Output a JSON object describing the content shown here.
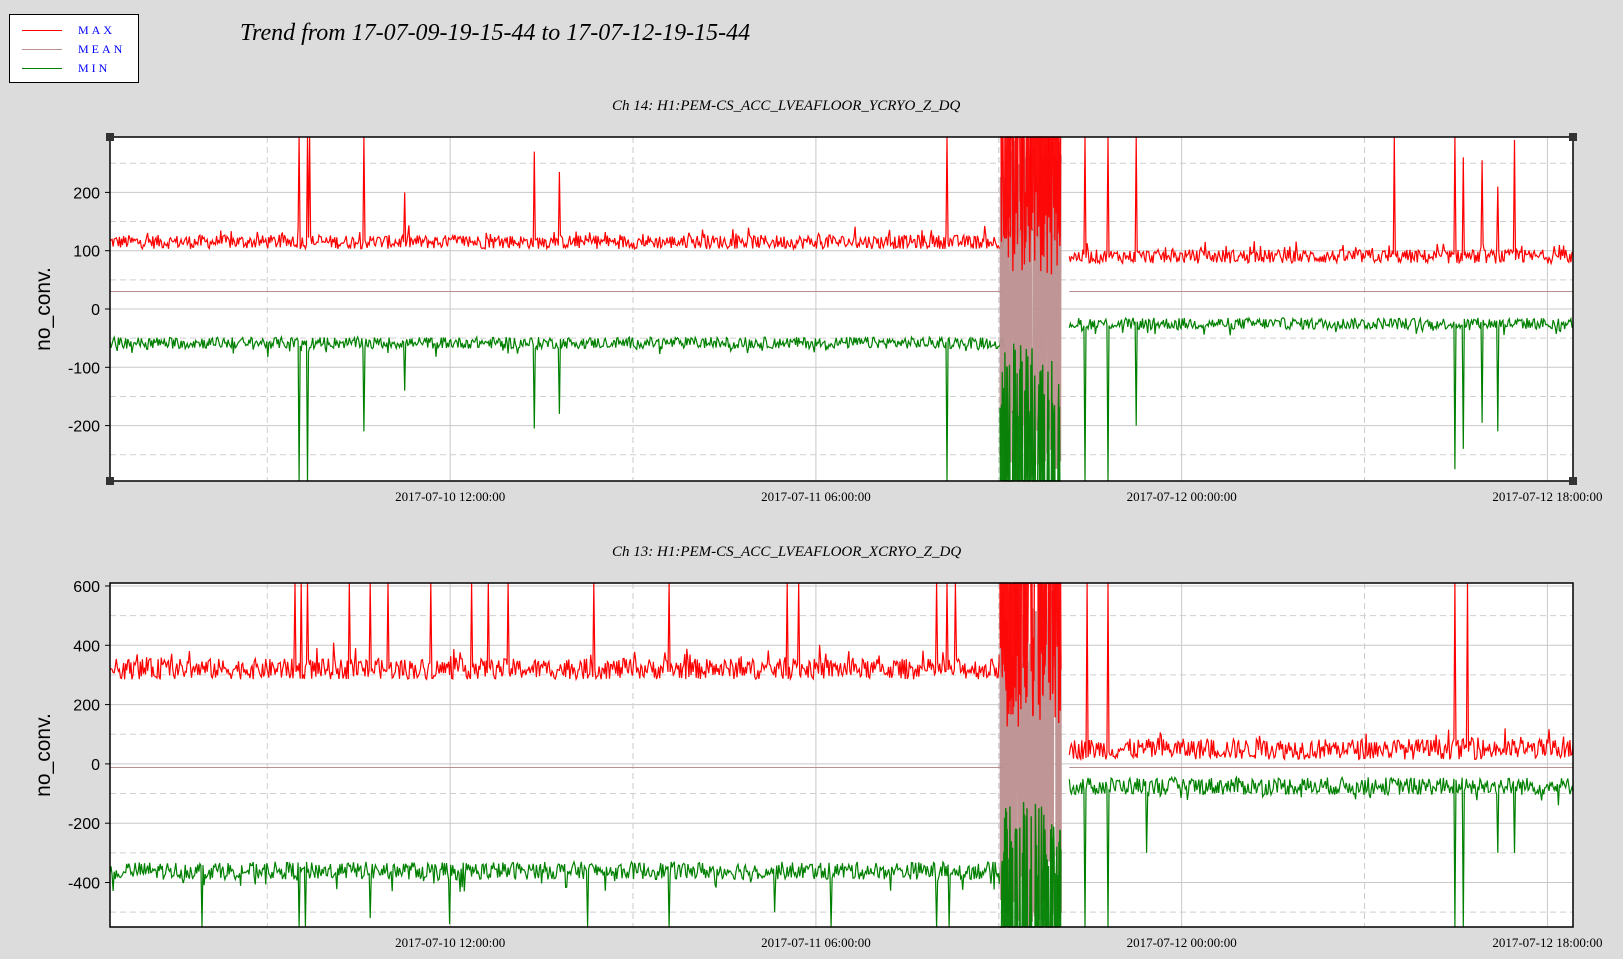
{
  "legend": {
    "items": [
      {
        "label": "MAX",
        "color": "#ff0000"
      },
      {
        "label": "MEAN",
        "color": "#bc8f8f"
      },
      {
        "label": "MIN",
        "color": "#008000"
      }
    ]
  },
  "title": "Trend from 17-07-09-19-15-44 to 17-07-12-19-15-44",
  "colors": {
    "max": "#ff0000",
    "mean": "#bc8f8f",
    "min": "#008000",
    "background": "#dcdcdc",
    "plot_bg": "#ffffff"
  },
  "chart_data": [
    {
      "type": "line",
      "title": "Ch 14: H1:PEM-CS_ACC_LVEAFLOOR_YCRYO_Z_DQ",
      "xlabel": "",
      "ylabel": "no_conv.",
      "xlim_hours": [
        0,
        72
      ],
      "x_ticks": [
        {
          "label": "2017-07-10 12:00:00",
          "hour": 16.74
        },
        {
          "label": "2017-07-11 06:00:00",
          "hour": 34.74
        },
        {
          "label": "2017-07-12 00:00:00",
          "hour": 52.74
        },
        {
          "label": "2017-07-12 18:00:00",
          "hour": 70.74
        }
      ],
      "ylim": [
        -295,
        295
      ],
      "y_ticks": [
        {
          "label": "200",
          "value": 200
        },
        {
          "label": "100",
          "value": 100
        },
        {
          "label": "0",
          "value": 0
        },
        {
          "label": "-100",
          "value": -100
        },
        {
          "label": "-200",
          "value": -200
        }
      ],
      "grid": true,
      "series": [
        {
          "name": "MAX",
          "color": "#ff0000",
          "baseline_segments": [
            [
              0,
              44,
              115
            ],
            [
              44,
              46.5,
              130
            ],
            [
              47.2,
              72,
              90
            ]
          ],
          "noise": 12,
          "spikes_hours": [
            9.3,
            9.7,
            9.8,
            12.5,
            14.5,
            20.9,
            22.1,
            41.2,
            44.9,
            45.3,
            46.2,
            48.0,
            49.1,
            50.5,
            63.2,
            66.2,
            66.6,
            67.5,
            68.3,
            69.1
          ],
          "spike_values": [
            295,
            295,
            295,
            295,
            200,
            270,
            235,
            295,
            295,
            295,
            295,
            295,
            295,
            295,
            295,
            295,
            260,
            255,
            210,
            290
          ]
        },
        {
          "name": "MEAN",
          "color": "#bc8f8f",
          "baseline_segments": [
            [
              0,
              44,
              30
            ],
            [
              47.2,
              72,
              30
            ]
          ],
          "noise": 0
        },
        {
          "name": "MIN",
          "color": "#008000",
          "baseline_segments": [
            [
              0,
              44,
              -58
            ],
            [
              47.2,
              72,
              -25
            ]
          ],
          "noise": 10,
          "spikes_hours": [
            9.3,
            9.7,
            12.5,
            14.5,
            20.9,
            22.1,
            41.2,
            44.8,
            45.5,
            46.3,
            48.0,
            49.1,
            50.5,
            66.2,
            66.6,
            67.5,
            68.3
          ],
          "spike_values": [
            -295,
            -295,
            -210,
            -140,
            -205,
            -180,
            -295,
            -295,
            -295,
            -295,
            -295,
            -295,
            -200,
            -275,
            -240,
            -195,
            -210
          ]
        }
      ],
      "disturbance_window_hours": [
        43.8,
        46.8
      ]
    },
    {
      "type": "line",
      "title": "Ch 13: H1:PEM-CS_ACC_LVEAFLOOR_XCRYO_Z_DQ",
      "xlabel": "",
      "ylabel": "no_conv.",
      "xlim_hours": [
        0,
        72
      ],
      "x_ticks": [
        {
          "label": "2017-07-10 12:00:00",
          "hour": 16.74
        },
        {
          "label": "2017-07-11 06:00:00",
          "hour": 34.74
        },
        {
          "label": "2017-07-12 00:00:00",
          "hour": 52.74
        },
        {
          "label": "2017-07-12 18:00:00",
          "hour": 70.74
        }
      ],
      "ylim": [
        -550,
        610
      ],
      "y_ticks": [
        {
          "label": "600",
          "value": 600
        },
        {
          "label": "400",
          "value": 400
        },
        {
          "label": "200",
          "value": 200
        },
        {
          "label": "0",
          "value": 0
        },
        {
          "label": "-200",
          "value": -200
        },
        {
          "label": "-400",
          "value": -400
        }
      ],
      "grid": true,
      "series": [
        {
          "name": "MAX",
          "color": "#ff0000",
          "baseline_segments": [
            [
              0,
              44,
              320
            ],
            [
              47.2,
              72,
              50
            ]
          ],
          "noise": 35,
          "spikes_hours": [
            9.1,
            9.4,
            9.7,
            11.8,
            12.8,
            13.7,
            15.8,
            17.8,
            18.6,
            19.6,
            23.8,
            27.5,
            33.3,
            33.9,
            40.7,
            41.2,
            41.6,
            44.7,
            45.3,
            46.0,
            47.0,
            48.1,
            49.1,
            66.2,
            66.8
          ],
          "spike_values": [
            610,
            610,
            610,
            610,
            610,
            610,
            610,
            610,
            610,
            610,
            610,
            610,
            610,
            610,
            610,
            610,
            610,
            610,
            610,
            610,
            610,
            610,
            610,
            610,
            610
          ]
        },
        {
          "name": "MEAN",
          "color": "#bc8f8f",
          "baseline_segments": [
            [
              0,
              44,
              -12
            ],
            [
              47.2,
              72,
              -12
            ]
          ],
          "noise": 0
        },
        {
          "name": "MIN",
          "color": "#008000",
          "baseline_segments": [
            [
              0,
              44,
              -360
            ],
            [
              47.2,
              72,
              -75
            ]
          ],
          "noise": 30,
          "spikes_hours": [
            4.5,
            9.3,
            9.6,
            12.8,
            16.7,
            23.5,
            27.5,
            32.7,
            35.5,
            40.7,
            41.3,
            44.8,
            45.3,
            46.2,
            48.0,
            49.1,
            51.0,
            66.2,
            66.6,
            68.3,
            69.1
          ],
          "spike_values": [
            -550,
            -550,
            -550,
            -520,
            -540,
            -550,
            -550,
            -500,
            -550,
            -550,
            -550,
            -550,
            -550,
            -550,
            -550,
            -550,
            -300,
            -550,
            -550,
            -300,
            -300
          ]
        }
      ],
      "disturbance_window_hours": [
        43.8,
        46.8
      ]
    }
  ]
}
